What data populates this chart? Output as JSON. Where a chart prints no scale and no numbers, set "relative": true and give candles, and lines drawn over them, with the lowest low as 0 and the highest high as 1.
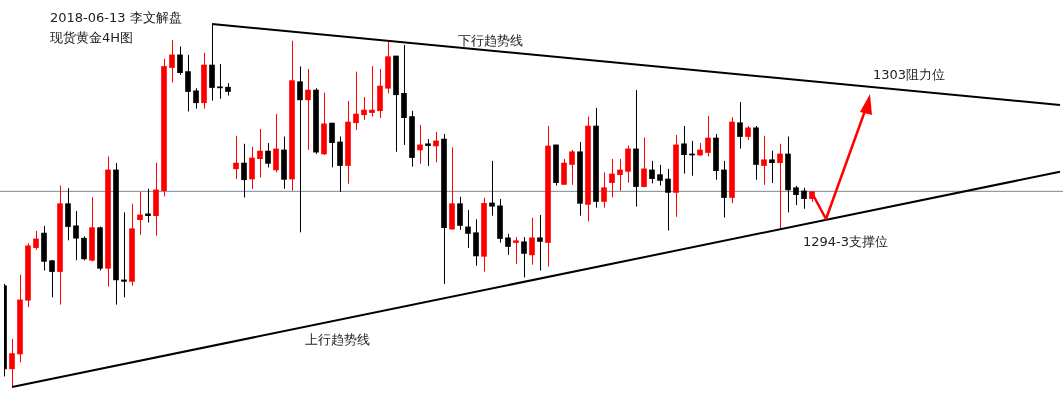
{
  "chart_data": {
    "type": "candlestick",
    "title": "2018-06-13 李文解盘",
    "subtitle": "现货黄金4H图",
    "relative": true,
    "legend": false,
    "categories": [
      null,
      null,
      null,
      null,
      null,
      null,
      null,
      null,
      null,
      null,
      null,
      null,
      null,
      null,
      null,
      null,
      null,
      null,
      null,
      null,
      null,
      null,
      null,
      null,
      null,
      null,
      null,
      null,
      null,
      null,
      null,
      null,
      null,
      null,
      null,
      null,
      null,
      null,
      null,
      null,
      null,
      null,
      null,
      null,
      null,
      null,
      null,
      null,
      null,
      null,
      null,
      null,
      null,
      null,
      null,
      null,
      null,
      null,
      null,
      null,
      null,
      null,
      null,
      null,
      null,
      null,
      null,
      null,
      null,
      null,
      null,
      null,
      null,
      null,
      null,
      null,
      null,
      null,
      null,
      null,
      null,
      null,
      null,
      null,
      null,
      null,
      null,
      null,
      null,
      null,
      null,
      null,
      null,
      null,
      null,
      null,
      null,
      null,
      null,
      null,
      null,
      null,
      null,
      null,
      null,
      null,
      null,
      null,
      null,
      null,
      null,
      null,
      null,
      null,
      null,
      null,
      null,
      null,
      null,
      null,
      null,
      null,
      null,
      null,
      null,
      null,
      null,
      null,
      null,
      null,
      null,
      null,
      null
    ],
    "ohlc": [
      [
        0.279,
        0.284,
        0.029,
        0.05
      ],
      [
        0.05,
        0.132,
        0,
        0.092
      ],
      [
        0.091,
        0.309,
        0.068,
        0.24
      ],
      [
        0.239,
        0.396,
        0.22,
        0.389
      ],
      [
        0.384,
        0.43,
        0.378,
        0.408
      ],
      [
        0.424,
        0.444,
        0.321,
        0.346
      ],
      [
        0.348,
        0.35,
        0.247,
        0.318
      ],
      [
        0.318,
        0.555,
        0.227,
        0.505
      ],
      [
        0.505,
        0.548,
        0.404,
        0.442
      ],
      [
        0.444,
        0.485,
        0.349,
        0.41
      ],
      [
        0.41,
        0.415,
        0.349,
        0.353
      ],
      [
        0.349,
        0.523,
        0.346,
        0.439
      ],
      [
        0.439,
        0.442,
        0.321,
        0.327
      ],
      [
        0.327,
        0.635,
        0.277,
        0.598
      ],
      [
        0.598,
        0.617,
        0.227,
        0.295
      ],
      [
        0.295,
        0.481,
        0.247,
        0.291
      ],
      [
        0.291,
        0.505,
        0.279,
        0.436
      ],
      [
        0.461,
        0.538,
        0.419,
        0.474
      ],
      [
        0.477,
        0.546,
        0.453,
        0.472
      ],
      [
        0.472,
        0.618,
        0.417,
        0.543
      ],
      [
        0.541,
        0.904,
        0.525,
        0.883
      ],
      [
        0.88,
        0.956,
        0.839,
        0.915
      ],
      [
        0.915,
        0.938,
        0.86,
        0.866
      ],
      [
        0.869,
        0.915,
        0.759,
        0.814
      ],
      [
        0.816,
        0.823,
        0.767,
        0.783
      ],
      [
        0.783,
        0.921,
        0.767,
        0.887
      ],
      [
        0.887,
        1,
        0.789,
        0.825
      ],
      [
        0.827,
        0.89,
        0.794,
        0.824
      ],
      [
        0.826,
        0.837,
        0.803,
        0.814
      ],
      [
        0.601,
        0.692,
        0.573,
        0.617
      ],
      [
        0.617,
        0.67,
        0.522,
        0.571
      ],
      [
        0.573,
        0.662,
        0.546,
        0.631
      ],
      [
        0.629,
        0.711,
        0.577,
        0.65
      ],
      [
        0.65,
        0.672,
        0.605,
        0.616
      ],
      [
        0.598,
        0.752,
        0.591,
        0.656
      ],
      [
        0.653,
        0.69,
        0.546,
        0.572
      ],
      [
        0.573,
        0.954,
        0.541,
        0.844
      ],
      [
        0.841,
        0.883,
        0.426,
        0.791
      ],
      [
        0.791,
        0.876,
        0.653,
        0.818
      ],
      [
        0.818,
        0.823,
        0.642,
        0.647
      ],
      [
        0.642,
        0.811,
        0.639,
        0.725
      ],
      [
        0.727,
        0.728,
        0.605,
        0.673
      ],
      [
        0.675,
        0.69,
        0.537,
        0.61
      ],
      [
        0.61,
        0.788,
        0.56,
        0.73
      ],
      [
        0.728,
        0.869,
        0.708,
        0.752
      ],
      [
        0.75,
        0.799,
        0.736,
        0.763
      ],
      [
        0.756,
        0.884,
        0.745,
        0.763
      ],
      [
        0.761,
        0.876,
        0.741,
        0.829
      ],
      [
        0.823,
        0.951,
        0.809,
        0.91
      ],
      [
        0.912,
        0.912,
        0.648,
        0.805
      ],
      [
        0.809,
        0.942,
        0.667,
        0.742
      ],
      [
        0.745,
        0.761,
        0.607,
        0.632
      ],
      [
        0.653,
        0.722,
        0.615,
        0.667
      ],
      [
        0.67,
        0.683,
        0.609,
        0.665
      ],
      [
        0.664,
        0.703,
        0.619,
        0.678
      ],
      [
        0.683,
        0.697,
        0.284,
        0.439
      ],
      [
        0.435,
        0.66,
        0.433,
        0.505
      ],
      [
        0.505,
        0.524,
        0.433,
        0.445
      ],
      [
        0.441,
        0.488,
        0.383,
        0.423
      ],
      [
        0.425,
        0.462,
        0.334,
        0.361
      ],
      [
        0.36,
        0.521,
        0.318,
        0.506
      ],
      [
        0.507,
        0.623,
        0.472,
        0.498
      ],
      [
        0.499,
        0.518,
        0.398,
        0.409
      ],
      [
        0.411,
        0.422,
        0.364,
        0.387
      ],
      [
        0.398,
        0.413,
        0.339,
        0.403
      ],
      [
        0.4,
        0.413,
        0.302,
        0.368
      ],
      [
        0.364,
        0.466,
        0.337,
        0.411
      ],
      [
        0.411,
        0.474,
        0.321,
        0.401
      ],
      [
        0.398,
        0.719,
        0.332,
        0.664
      ],
      [
        0.667,
        0.667,
        0.555,
        0.563
      ],
      [
        0.558,
        0.628,
        0.557,
        0.617
      ],
      [
        0.613,
        0.653,
        0.557,
        0.648
      ],
      [
        0.648,
        0.675,
        0.472,
        0.506
      ],
      [
        0.503,
        0.745,
        0.456,
        0.719
      ],
      [
        0.719,
        0.769,
        0.494,
        0.511
      ],
      [
        0.511,
        0.591,
        0.494,
        0.549
      ],
      [
        0.563,
        0.628,
        0.522,
        0.587
      ],
      [
        0.585,
        0.628,
        0.541,
        0.598
      ],
      [
        0.594,
        0.665,
        0.563,
        0.656
      ],
      [
        0.656,
        0.818,
        0.497,
        0.552
      ],
      [
        0.552,
        0.687,
        0.55,
        0.601
      ],
      [
        0.598,
        0.623,
        0.561,
        0.574
      ],
      [
        0.585,
        0.612,
        0.555,
        0.569
      ],
      [
        0.573,
        0.601,
        0.431,
        0.536
      ],
      [
        0.536,
        0.694,
        0.469,
        0.667
      ],
      [
        0.67,
        0.719,
        0.588,
        0.64
      ],
      [
        0.642,
        0.678,
        0.582,
        0.639
      ],
      [
        0.639,
        0.672,
        0.637,
        0.653
      ],
      [
        0.646,
        0.747,
        0.635,
        0.686
      ],
      [
        0.686,
        0.697,
        0.571,
        0.596
      ],
      [
        0.598,
        0.623,
        0.467,
        0.522
      ],
      [
        0.522,
        0.743,
        0.506,
        0.73
      ],
      [
        0.728,
        0.785,
        0.657,
        0.69
      ],
      [
        0.69,
        0.719,
        0.681,
        0.714
      ],
      [
        0.714,
        0.719,
        0.571,
        0.613
      ],
      [
        0.61,
        0.692,
        0.557,
        0.626
      ],
      [
        0.626,
        0.651,
        0.562,
        0.618
      ],
      [
        0.618,
        0.67,
        0.433,
        0.642
      ],
      [
        0.642,
        0.69,
        0.481,
        0.543
      ],
      [
        0.549,
        0.554,
        0.501,
        0.53
      ],
      [
        0.54,
        0.549,
        0.491,
        0.519
      ],
      [
        0.519,
        0.538,
        0.51,
        0.538
      ],
      null,
      null,
      null,
      null,
      null,
      null,
      null,
      null,
      null,
      null,
      null,
      null,
      null,
      null,
      null,
      null,
      null,
      null,
      null,
      null,
      null,
      null,
      null,
      null,
      null,
      null,
      null,
      null,
      null,
      null,
      null
    ],
    "colors": [
      "#000000",
      "#ff0000",
      "#ff0000",
      "#ff0000",
      "#ff0000",
      "#000000",
      "#000000",
      "#ff0000",
      "#000000",
      "#000000",
      "#000000",
      "#ff0000",
      "#000000",
      "#ff0000",
      "#000000",
      "#000000",
      "#ff0000",
      "#ff0000",
      "#000000",
      "#ff0000",
      "#ff0000",
      "#ff0000",
      "#000000",
      "#000000",
      "#000000",
      "#ff0000",
      "#000000",
      "#000000",
      "#000000",
      "#ff0000",
      "#000000",
      "#ff0000",
      "#ff0000",
      "#000000",
      "#ff0000",
      "#000000",
      "#ff0000",
      "#000000",
      "#ff0000",
      "#000000",
      "#ff0000",
      "#000000",
      "#000000",
      "#ff0000",
      "#ff0000",
      "#ff0000",
      "#ff0000",
      "#ff0000",
      "#ff0000",
      "#000000",
      "#000000",
      "#000000",
      "#ff0000",
      "#000000",
      "#ff0000",
      "#000000",
      "#ff0000",
      "#000000",
      "#000000",
      "#000000",
      "#ff0000",
      "#000000",
      "#000000",
      "#000000",
      "#ff0000",
      "#000000",
      "#ff0000",
      "#000000",
      "#ff0000",
      "#000000",
      "#ff0000",
      "#ff0000",
      "#000000",
      "#ff0000",
      "#000000",
      "#ff0000",
      "#ff0000",
      "#ff0000",
      "#ff0000",
      "#000000",
      "#ff0000",
      "#000000",
      "#000000",
      "#000000",
      "#ff0000",
      "#000000",
      "#000000",
      "#ff0000",
      "#ff0000",
      "#000000",
      "#000000",
      "#ff0000",
      "#000000",
      "#ff0000",
      "#000000",
      "#ff0000",
      "#000000",
      "#ff0000",
      "#000000",
      "#000000",
      "#000000",
      "#ff0000",
      null,
      null,
      null,
      null,
      null,
      null,
      null,
      null,
      null,
      null,
      null,
      null,
      null,
      null,
      null,
      null,
      null,
      null,
      null,
      null,
      null,
      null,
      null,
      null,
      null,
      null,
      null,
      null,
      null,
      null,
      null
    ],
    "series": [
      {
        "type": "line",
        "color": "#000000",
        "values": [
          null,
          0,
          null,
          null,
          null,
          null,
          null,
          null,
          null,
          null,
          null,
          null,
          null,
          null,
          null,
          null,
          null,
          null,
          null,
          null,
          null,
          null,
          null,
          null,
          null,
          null,
          null,
          null,
          null,
          null,
          null,
          null,
          null,
          null,
          null,
          null,
          null,
          null,
          null,
          null,
          null,
          null,
          null,
          null,
          null,
          null,
          null,
          null,
          null,
          null,
          null,
          null,
          null,
          null,
          null,
          null,
          null,
          null,
          null,
          null,
          null,
          null,
          null,
          null,
          null,
          null,
          null,
          null,
          null,
          null,
          null,
          null,
          null,
          null,
          null,
          null,
          null,
          null,
          null,
          null,
          null,
          null,
          null,
          null,
          null,
          null,
          null,
          null,
          null,
          null,
          null,
          null,
          null,
          null,
          null,
          null,
          null,
          null,
          null,
          null,
          null,
          null,
          null,
          null,
          null,
          null,
          null,
          null,
          null,
          null,
          null,
          null,
          null,
          null,
          null,
          null,
          null,
          null,
          null,
          null,
          null,
          null,
          null,
          null,
          null,
          null,
          null,
          null,
          null,
          null,
          null,
          null,
          0.593
        ]
      },
      {
        "type": "line",
        "color": "#000000",
        "values": [
          null,
          null,
          null,
          null,
          null,
          null,
          null,
          null,
          null,
          null,
          null,
          null,
          null,
          null,
          null,
          null,
          null,
          null,
          null,
          null,
          null,
          null,
          null,
          null,
          null,
          null,
          1,
          null,
          null,
          null,
          null,
          null,
          null,
          null,
          null,
          null,
          null,
          null,
          null,
          null,
          null,
          null,
          null,
          null,
          null,
          null,
          null,
          null,
          null,
          null,
          null,
          null,
          null,
          null,
          null,
          null,
          null,
          null,
          null,
          null,
          null,
          null,
          null,
          null,
          null,
          null,
          null,
          null,
          null,
          null,
          null,
          null,
          null,
          null,
          null,
          null,
          null,
          null,
          null,
          null,
          null,
          null,
          null,
          null,
          null,
          null,
          null,
          null,
          null,
          null,
          null,
          null,
          null,
          null,
          null,
          null,
          null,
          null,
          null,
          null,
          null,
          null,
          null,
          null,
          null,
          null,
          null,
          null,
          null,
          null,
          null,
          null,
          null,
          null,
          null,
          null,
          null,
          null,
          null,
          null,
          null,
          null,
          null,
          null,
          null,
          null,
          null,
          null,
          null,
          null,
          null,
          null,
          0.777
        ]
      }
    ],
    "ref_lines": [
      {
        "axis": "y",
        "value": 0.539,
        "color": "#778899"
      }
    ],
    "annotations": [
      "下行趋势线",
      "上行趋势线",
      "1303阻力位",
      "1294-3支撑位"
    ]
  }
}
